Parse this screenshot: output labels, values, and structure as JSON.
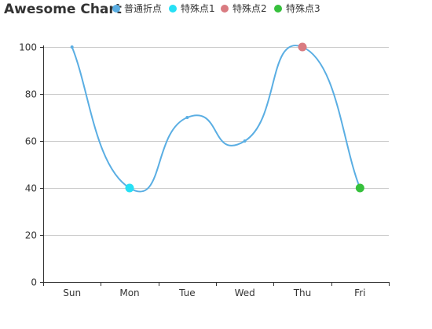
{
  "chart_data": {
    "type": "line",
    "title": "Awesome Chart",
    "categories": [
      "Sun",
      "Mon",
      "Tue",
      "Wed",
      "Thu",
      "Fri"
    ],
    "series": [
      {
        "name": "普通折点",
        "values": [
          100,
          40,
          70,
          60,
          100,
          40
        ],
        "color": "#5aaee3",
        "smooth": true
      }
    ],
    "highlight_points": [
      {
        "name": "特殊点1",
        "category": "Mon",
        "value": 40,
        "color": "#26e0f5"
      },
      {
        "name": "特殊点2",
        "category": "Thu",
        "value": 100,
        "color": "#d97b81"
      },
      {
        "name": "特殊点3",
        "category": "Fri",
        "value": 40,
        "color": "#36c03c"
      }
    ],
    "ylim": [
      0,
      100
    ],
    "yticks": [
      0,
      20,
      40,
      60,
      80,
      100
    ],
    "grid": "horizontal",
    "legend_position": "top",
    "xlabel": "",
    "ylabel": ""
  }
}
